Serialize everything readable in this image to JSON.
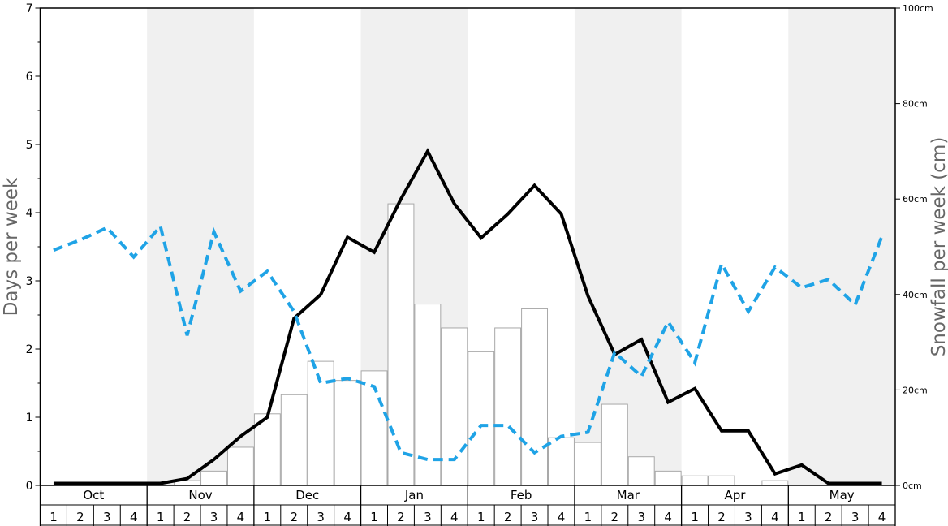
{
  "chart_data": {
    "type": "bar+line",
    "title": "",
    "left_axis": {
      "label": "Days per week",
      "range": [
        0,
        7
      ],
      "ticks": [
        "0",
        "1",
        "2",
        "3",
        "4",
        "5",
        "6",
        "7"
      ]
    },
    "right_axis": {
      "label": "Snowfall per week (cm)",
      "range": [
        0,
        100
      ],
      "ticks": [
        "0cm",
        "20cm",
        "40cm",
        "60cm",
        "80cm",
        "100cm"
      ]
    },
    "months": [
      "Oct",
      "Nov",
      "Dec",
      "Jan",
      "Feb",
      "Mar",
      "Apr",
      "May"
    ],
    "week_labels": [
      "1",
      "2",
      "3",
      "4"
    ],
    "weeks": 32,
    "colors": {
      "band_shade": "#f0f0f0",
      "bar_fill": "#ffffff",
      "bar_stroke": "#a8a8a8",
      "snow_days_line": "#000000",
      "secondary_line": "#1fa3e6"
    },
    "series": [
      {
        "kind": "bar",
        "axis": "right",
        "values": [
          0,
          0,
          0,
          0,
          0,
          1,
          3,
          8,
          15,
          19,
          26,
          22,
          24,
          59,
          38,
          33,
          28,
          33,
          37,
          10,
          9,
          17,
          6,
          3,
          2,
          2,
          0,
          1,
          0,
          0,
          0,
          0
        ]
      },
      {
        "kind": "line",
        "axis": "left",
        "style": "solid",
        "values": [
          0.03,
          0.03,
          0.03,
          0.03,
          0.03,
          0.1,
          0.38,
          0.72,
          1.0,
          2.45,
          2.8,
          3.64,
          3.42,
          4.2,
          4.9,
          4.13,
          3.63,
          3.98,
          4.4,
          3.98,
          2.78,
          1.92,
          2.14,
          1.22,
          1.42,
          0.8,
          0.8,
          0.17,
          0.3,
          0.03,
          0.03,
          0.03
        ]
      },
      {
        "kind": "line",
        "axis": "left",
        "style": "dashed",
        "values": [
          3.45,
          3.6,
          3.78,
          3.35,
          3.8,
          2.2,
          3.72,
          2.85,
          3.14,
          2.55,
          1.5,
          1.57,
          1.45,
          0.48,
          0.38,
          0.38,
          0.88,
          0.88,
          0.48,
          0.72,
          0.78,
          1.95,
          1.6,
          2.4,
          1.8,
          3.25,
          2.55,
          3.2,
          2.9,
          3.02,
          2.65,
          3.65
        ]
      }
    ]
  }
}
